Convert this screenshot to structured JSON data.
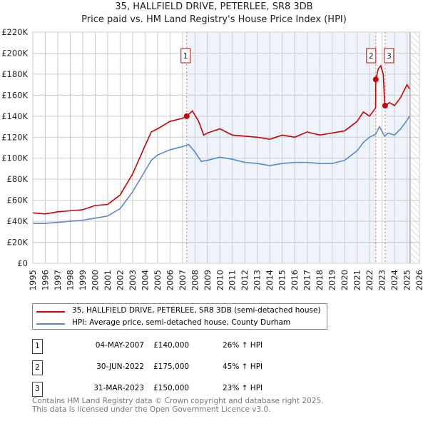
{
  "title": "35, HALLFIELD DRIVE, PETERLEE, SR8 3DB",
  "subtitle": "Price paid vs. HM Land Registry's House Price Index (HPI)",
  "chart_data": {
    "type": "line",
    "title": "35, HALLFIELD DRIVE, PETERLEE, SR8 3DB",
    "xlim": [
      1995,
      2026
    ],
    "ylim": [
      0,
      220000
    ],
    "x_ticks": [
      "1995",
      "1996",
      "1997",
      "1998",
      "1999",
      "2000",
      "2001",
      "2002",
      "2003",
      "2004",
      "2005",
      "2006",
      "2007",
      "2008",
      "2009",
      "2010",
      "2011",
      "2012",
      "2013",
      "2014",
      "2015",
      "2016",
      "2017",
      "2018",
      "2019",
      "2020",
      "2021",
      "2022",
      "2023",
      "2024",
      "2025",
      "2026"
    ],
    "y_ticks": [
      "£0",
      "£20K",
      "£40K",
      "£60K",
      "£80K",
      "£100K",
      "£120K",
      "£140K",
      "£160K",
      "£180K",
      "£200K",
      "£220K"
    ],
    "series": [
      {
        "name": "35, HALLFIELD DRIVE, PETERLEE, SR8 3DB (semi-detached house)",
        "color": "#cc0000",
        "x": [
          1995,
          1996,
          1997,
          1998,
          1999,
          2000,
          2001,
          2002,
          2003,
          2004,
          2004.5,
          2005,
          2006,
          2007,
          2007.34,
          2007.8,
          2008.3,
          2008.7,
          2009,
          2010,
          2011,
          2012,
          2013,
          2014,
          2015,
          2016,
          2017,
          2018,
          2019,
          2020,
          2021,
          2021.5,
          2022,
          2022.49,
          2022.5,
          2022.7,
          2022.9,
          2023.1,
          2023.2,
          2023.25,
          2023.6,
          2024,
          2024.5,
          2025,
          2025.2
        ],
        "y": [
          48000,
          47000,
          49000,
          50000,
          51000,
          55000,
          56000,
          65000,
          85000,
          112000,
          125000,
          128000,
          135000,
          138000,
          140000,
          145000,
          135000,
          122000,
          124000,
          128000,
          122000,
          121000,
          120000,
          118000,
          122000,
          120000,
          125000,
          122000,
          124000,
          126000,
          135000,
          144000,
          140000,
          148000,
          175000,
          185000,
          188000,
          180000,
          155000,
          150000,
          153000,
          150000,
          158000,
          170000,
          166000
        ]
      },
      {
        "name": "HPI: Average price, semi-detached house, County Durham",
        "color": "#5588cc",
        "x": [
          1995,
          1996,
          1997,
          1998,
          1999,
          2000,
          2001,
          2002,
          2003,
          2004,
          2004.5,
          2005,
          2006,
          2007,
          2007.5,
          2008,
          2008.5,
          2009,
          2010,
          2011,
          2012,
          2013,
          2014,
          2015,
          2016,
          2017,
          2018,
          2019,
          2020,
          2021,
          2021.5,
          2022,
          2022.5,
          2022.8,
          2023.2,
          2023.5,
          2024,
          2024.5,
          2025,
          2025.2
        ],
        "y": [
          38000,
          38000,
          39000,
          40000,
          41000,
          43000,
          45000,
          52000,
          68000,
          88000,
          98000,
          103000,
          108000,
          111000,
          113000,
          106000,
          97000,
          98000,
          101000,
          99000,
          96000,
          95000,
          93000,
          95000,
          96000,
          96000,
          95000,
          95000,
          98000,
          107000,
          115000,
          120000,
          123000,
          130000,
          121000,
          124000,
          122000,
          128000,
          136000,
          140000
        ]
      }
    ],
    "sales": [
      {
        "label": "1",
        "x": 2007.34,
        "y": 140000
      },
      {
        "label": "2",
        "x": 2022.5,
        "y": 175000
      },
      {
        "label": "3",
        "x": 2023.25,
        "y": 150000
      }
    ]
  },
  "legend": [
    "35, HALLFIELD DRIVE, PETERLEE, SR8 3DB (semi-detached house)",
    "HPI: Average price, semi-detached house, County Durham"
  ],
  "table": [
    {
      "n": "1",
      "date": "04-MAY-2007",
      "price": "£140,000",
      "hpi": "26% ↑ HPI"
    },
    {
      "n": "2",
      "date": "30-JUN-2022",
      "price": "£175,000",
      "hpi": "45% ↑ HPI"
    },
    {
      "n": "3",
      "date": "31-MAR-2023",
      "price": "£150,000",
      "hpi": "23% ↑ HPI"
    }
  ],
  "footer": [
    "Contains HM Land Registry data © Crown copyright and database right 2025.",
    "This data is licensed under the Open Government Licence v3.0."
  ]
}
